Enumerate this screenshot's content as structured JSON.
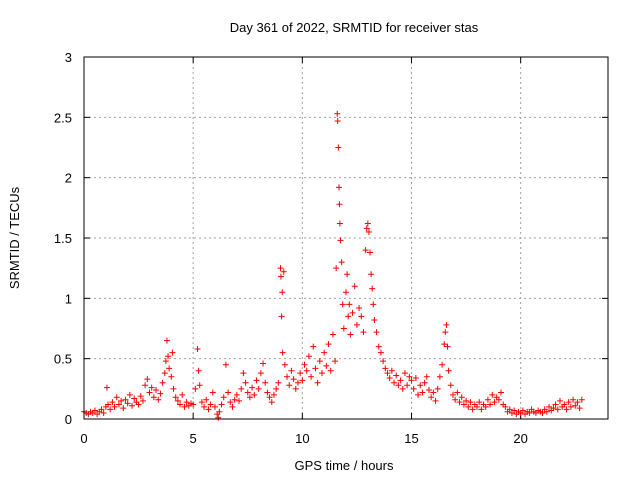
{
  "chart_data": {
    "type": "scatter",
    "title": "Day 361 of 2022, SRMTID for receiver stas",
    "xlabel": "GPS time / hours",
    "ylabel": "SRMTID / TECUs",
    "xlim": [
      0,
      24
    ],
    "ylim": [
      0,
      3
    ],
    "xticks": [
      0,
      5,
      10,
      15,
      20
    ],
    "yticks": [
      0,
      0.5,
      1,
      1.5,
      2,
      2.5,
      3
    ],
    "xtick_labels": [
      "0",
      "5",
      "10",
      "15",
      "20"
    ],
    "ytick_labels": [
      "0",
      "0.5",
      "1",
      "1.5",
      "2",
      "2.5",
      "3"
    ],
    "grid": true,
    "marker": "+",
    "series": [
      {
        "name": "SRMTID",
        "color": "#ff0000",
        "points": [
          [
            0.0,
            0.06
          ],
          [
            0.1,
            0.05
          ],
          [
            0.2,
            0.04
          ],
          [
            0.3,
            0.06
          ],
          [
            0.4,
            0.05
          ],
          [
            0.5,
            0.07
          ],
          [
            0.6,
            0.04
          ],
          [
            0.7,
            0.06
          ],
          [
            0.8,
            0.08
          ],
          [
            0.9,
            0.05
          ],
          [
            1.0,
            0.1
          ],
          [
            1.05,
            0.26
          ],
          [
            1.1,
            0.12
          ],
          [
            1.2,
            0.08
          ],
          [
            1.3,
            0.14
          ],
          [
            1.4,
            0.1
          ],
          [
            1.5,
            0.18
          ],
          [
            1.6,
            0.12
          ],
          [
            1.7,
            0.15
          ],
          [
            1.8,
            0.09
          ],
          [
            1.9,
            0.16
          ],
          [
            2.0,
            0.13
          ],
          [
            2.1,
            0.2
          ],
          [
            2.2,
            0.11
          ],
          [
            2.3,
            0.17
          ],
          [
            2.4,
            0.14
          ],
          [
            2.5,
            0.12
          ],
          [
            2.6,
            0.19
          ],
          [
            2.7,
            0.15
          ],
          [
            2.8,
            0.28
          ],
          [
            2.9,
            0.33
          ],
          [
            3.0,
            0.22
          ],
          [
            3.1,
            0.26
          ],
          [
            3.2,
            0.18
          ],
          [
            3.3,
            0.24
          ],
          [
            3.4,
            0.16
          ],
          [
            3.5,
            0.21
          ],
          [
            3.6,
            0.3
          ],
          [
            3.7,
            0.38
          ],
          [
            3.75,
            0.48
          ],
          [
            3.8,
            0.65
          ],
          [
            3.85,
            0.52
          ],
          [
            3.9,
            0.42
          ],
          [
            4.0,
            0.35
          ],
          [
            4.05,
            0.55
          ],
          [
            4.1,
            0.25
          ],
          [
            4.2,
            0.18
          ],
          [
            4.3,
            0.15
          ],
          [
            4.4,
            0.12
          ],
          [
            4.5,
            0.2
          ],
          [
            4.6,
            0.1
          ],
          [
            4.7,
            0.14
          ],
          [
            4.8,
            0.11
          ],
          [
            4.9,
            0.13
          ],
          [
            5.0,
            0.12
          ],
          [
            5.1,
            0.25
          ],
          [
            5.2,
            0.58
          ],
          [
            5.25,
            0.4
          ],
          [
            5.3,
            0.28
          ],
          [
            5.4,
            0.14
          ],
          [
            5.5,
            0.1
          ],
          [
            5.6,
            0.16
          ],
          [
            5.7,
            0.08
          ],
          [
            5.8,
            0.12
          ],
          [
            5.9,
            0.22
          ],
          [
            6.0,
            0.1
          ],
          [
            6.1,
            0.04
          ],
          [
            6.15,
            0.01
          ],
          [
            6.2,
            0.06
          ],
          [
            6.3,
            0.12
          ],
          [
            6.4,
            0.18
          ],
          [
            6.5,
            0.45
          ],
          [
            6.6,
            0.22
          ],
          [
            6.7,
            0.14
          ],
          [
            6.8,
            0.1
          ],
          [
            6.9,
            0.16
          ],
          [
            7.0,
            0.2
          ],
          [
            7.1,
            0.15
          ],
          [
            7.2,
            0.25
          ],
          [
            7.3,
            0.38
          ],
          [
            7.4,
            0.3
          ],
          [
            7.5,
            0.22
          ],
          [
            7.6,
            0.18
          ],
          [
            7.7,
            0.26
          ],
          [
            7.8,
            0.2
          ],
          [
            7.9,
            0.32
          ],
          [
            8.0,
            0.25
          ],
          [
            8.1,
            0.38
          ],
          [
            8.2,
            0.46
          ],
          [
            8.3,
            0.3
          ],
          [
            8.4,
            0.22
          ],
          [
            8.5,
            0.18
          ],
          [
            8.6,
            0.14
          ],
          [
            8.7,
            0.2
          ],
          [
            8.8,
            0.25
          ],
          [
            8.9,
            0.3
          ],
          [
            9.0,
            1.25
          ],
          [
            9.02,
            1.18
          ],
          [
            9.05,
            0.85
          ],
          [
            9.08,
            1.05
          ],
          [
            9.1,
            0.55
          ],
          [
            9.15,
            1.22
          ],
          [
            9.2,
            0.45
          ],
          [
            9.3,
            0.35
          ],
          [
            9.4,
            0.28
          ],
          [
            9.5,
            0.4
          ],
          [
            9.6,
            0.33
          ],
          [
            9.7,
            0.25
          ],
          [
            9.8,
            0.3
          ],
          [
            9.9,
            0.38
          ],
          [
            10.0,
            0.32
          ],
          [
            10.1,
            0.45
          ],
          [
            10.2,
            0.4
          ],
          [
            10.3,
            0.52
          ],
          [
            10.4,
            0.35
          ],
          [
            10.5,
            0.6
          ],
          [
            10.6,
            0.42
          ],
          [
            10.7,
            0.3
          ],
          [
            10.8,
            0.48
          ],
          [
            10.9,
            0.38
          ],
          [
            11.0,
            0.55
          ],
          [
            11.1,
            0.44
          ],
          [
            11.2,
            0.62
          ],
          [
            11.3,
            0.4
          ],
          [
            11.4,
            0.7
          ],
          [
            11.5,
            0.48
          ],
          [
            11.55,
            1.25
          ],
          [
            11.6,
            2.53
          ],
          [
            11.62,
            2.47
          ],
          [
            11.65,
            2.25
          ],
          [
            11.68,
            1.92
          ],
          [
            11.7,
            1.78
          ],
          [
            11.72,
            1.62
          ],
          [
            11.75,
            1.48
          ],
          [
            11.8,
            1.3
          ],
          [
            11.85,
            0.95
          ],
          [
            11.9,
            0.75
          ],
          [
            12.0,
            1.05
          ],
          [
            12.05,
            1.2
          ],
          [
            12.1,
            0.85
          ],
          [
            12.15,
            0.95
          ],
          [
            12.2,
            0.7
          ],
          [
            12.3,
            0.88
          ],
          [
            12.4,
            1.1
          ],
          [
            12.5,
            0.78
          ],
          [
            12.6,
            0.92
          ],
          [
            12.7,
            0.85
          ],
          [
            12.8,
            0.72
          ],
          [
            12.9,
            1.4
          ],
          [
            12.95,
            1.58
          ],
          [
            13.0,
            1.62
          ],
          [
            13.05,
            1.55
          ],
          [
            13.1,
            1.38
          ],
          [
            13.15,
            1.2
          ],
          [
            13.2,
            1.08
          ],
          [
            13.25,
            0.95
          ],
          [
            13.3,
            0.82
          ],
          [
            13.4,
            0.72
          ],
          [
            13.5,
            0.6
          ],
          [
            13.6,
            0.55
          ],
          [
            13.7,
            0.48
          ],
          [
            13.8,
            0.42
          ],
          [
            13.9,
            0.38
          ],
          [
            14.0,
            0.34
          ],
          [
            14.1,
            0.4
          ],
          [
            14.2,
            0.3
          ],
          [
            14.3,
            0.36
          ],
          [
            14.4,
            0.28
          ],
          [
            14.5,
            0.32
          ],
          [
            14.6,
            0.25
          ],
          [
            14.7,
            0.38
          ],
          [
            14.8,
            0.28
          ],
          [
            14.9,
            0.35
          ],
          [
            15.0,
            0.32
          ],
          [
            15.1,
            0.25
          ],
          [
            15.2,
            0.34
          ],
          [
            15.3,
            0.2
          ],
          [
            15.4,
            0.28
          ],
          [
            15.5,
            0.22
          ],
          [
            15.6,
            0.3
          ],
          [
            15.7,
            0.35
          ],
          [
            15.8,
            0.24
          ],
          [
            15.9,
            0.18
          ],
          [
            16.0,
            0.22
          ],
          [
            16.1,
            0.15
          ],
          [
            16.2,
            0.25
          ],
          [
            16.3,
            0.35
          ],
          [
            16.4,
            0.45
          ],
          [
            16.5,
            0.62
          ],
          [
            16.55,
            0.72
          ],
          [
            16.6,
            0.78
          ],
          [
            16.65,
            0.6
          ],
          [
            16.7,
            0.4
          ],
          [
            16.8,
            0.28
          ],
          [
            16.9,
            0.2
          ],
          [
            17.0,
            0.16
          ],
          [
            17.1,
            0.22
          ],
          [
            17.2,
            0.14
          ],
          [
            17.3,
            0.18
          ],
          [
            17.4,
            0.12
          ],
          [
            17.5,
            0.15
          ],
          [
            17.6,
            0.1
          ],
          [
            17.7,
            0.14
          ],
          [
            17.8,
            0.08
          ],
          [
            17.9,
            0.12
          ],
          [
            18.0,
            0.1
          ],
          [
            18.1,
            0.14
          ],
          [
            18.2,
            0.08
          ],
          [
            18.3,
            0.12
          ],
          [
            18.4,
            0.1
          ],
          [
            18.5,
            0.16
          ],
          [
            18.6,
            0.12
          ],
          [
            18.7,
            0.2
          ],
          [
            18.8,
            0.14
          ],
          [
            18.9,
            0.18
          ],
          [
            19.0,
            0.16
          ],
          [
            19.1,
            0.22
          ],
          [
            19.2,
            0.12
          ],
          [
            19.3,
            0.1
          ],
          [
            19.4,
            0.06
          ],
          [
            19.5,
            0.08
          ],
          [
            19.6,
            0.05
          ],
          [
            19.7,
            0.07
          ],
          [
            19.8,
            0.04
          ],
          [
            19.9,
            0.06
          ],
          [
            20.0,
            0.05
          ],
          [
            20.1,
            0.07
          ],
          [
            20.2,
            0.04
          ],
          [
            20.3,
            0.06
          ],
          [
            20.4,
            0.05
          ],
          [
            20.5,
            0.08
          ],
          [
            20.6,
            0.06
          ],
          [
            20.7,
            0.05
          ],
          [
            20.8,
            0.07
          ],
          [
            20.9,
            0.06
          ],
          [
            21.0,
            0.05
          ],
          [
            21.1,
            0.08
          ],
          [
            21.2,
            0.06
          ],
          [
            21.3,
            0.1
          ],
          [
            21.4,
            0.07
          ],
          [
            21.5,
            0.09
          ],
          [
            21.6,
            0.12
          ],
          [
            21.7,
            0.08
          ],
          [
            21.8,
            0.15
          ],
          [
            21.9,
            0.1
          ],
          [
            22.0,
            0.12
          ],
          [
            22.1,
            0.08
          ],
          [
            22.2,
            0.14
          ],
          [
            22.3,
            0.1
          ],
          [
            22.4,
            0.16
          ],
          [
            22.5,
            0.11
          ],
          [
            22.6,
            0.14
          ],
          [
            22.7,
            0.09
          ],
          [
            22.8,
            0.16
          ]
        ]
      }
    ]
  }
}
